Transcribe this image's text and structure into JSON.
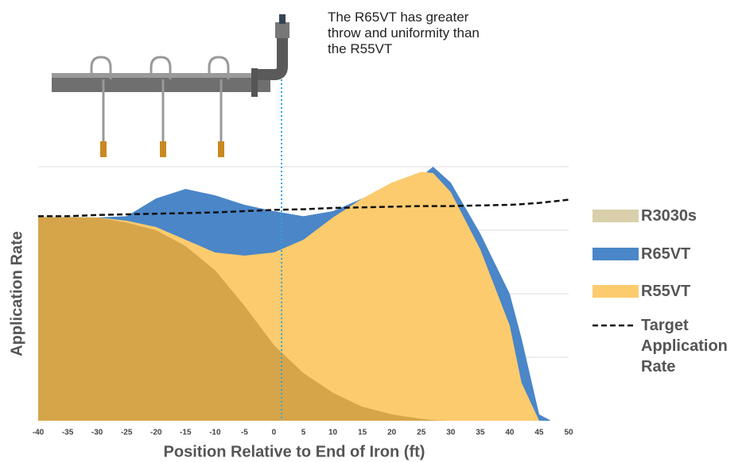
{
  "chart_data": {
    "type": "area",
    "annotation": "The R65VT has greater throw and uniformity than the R55VT",
    "xlabel": "Position Relative to End of Iron (ft)",
    "ylabel": "Application Rate",
    "x": [
      -40,
      -35,
      -30,
      -25,
      -20,
      -15,
      -10,
      -5,
      0,
      5,
      10,
      15,
      20,
      25,
      27,
      30,
      35,
      40,
      42,
      45,
      47,
      50
    ],
    "xlim": [
      -40,
      50
    ],
    "xticks": [
      -40,
      -35,
      -30,
      -25,
      -20,
      -15,
      -10,
      -5,
      0,
      5,
      10,
      15,
      20,
      25,
      30,
      35,
      40,
      45,
      50
    ],
    "ylim": [
      0,
      4
    ],
    "grid": true,
    "series": [
      {
        "name": "R3030s",
        "color": "#d9cfaa",
        "values": [
          3.22,
          3.22,
          3.2,
          3.12,
          3.0,
          2.75,
          2.37,
          1.81,
          1.19,
          0.75,
          0.44,
          0.22,
          0.1,
          0.03,
          0.01,
          0,
          0,
          0,
          0,
          0,
          0,
          0
        ]
      },
      {
        "name": "R65VT",
        "color": "#4a86c8",
        "values": [
          3.2,
          3.2,
          3.2,
          3.22,
          3.5,
          3.65,
          3.55,
          3.4,
          3.3,
          3.22,
          3.3,
          3.5,
          3.7,
          3.85,
          4.0,
          3.75,
          2.95,
          2.0,
          1.3,
          0.1,
          0,
          0
        ]
      },
      {
        "name": "R55VT",
        "color": "#fccb6e",
        "values": [
          3.2,
          3.2,
          3.2,
          3.15,
          3.05,
          2.85,
          2.65,
          2.6,
          2.65,
          2.85,
          3.2,
          3.5,
          3.75,
          3.92,
          3.9,
          3.6,
          2.7,
          1.5,
          0.6,
          0,
          0,
          0
        ]
      },
      {
        "name": "Target Application Rate",
        "color": "#111111",
        "style": "dashed",
        "values": [
          3.22,
          3.22,
          3.24,
          3.25,
          3.26,
          3.27,
          3.28,
          3.3,
          3.32,
          3.33,
          3.35,
          3.36,
          3.37,
          3.38,
          3.38,
          3.38,
          3.39,
          3.4,
          3.41,
          3.43,
          3.45,
          3.48
        ]
      }
    ]
  }
}
